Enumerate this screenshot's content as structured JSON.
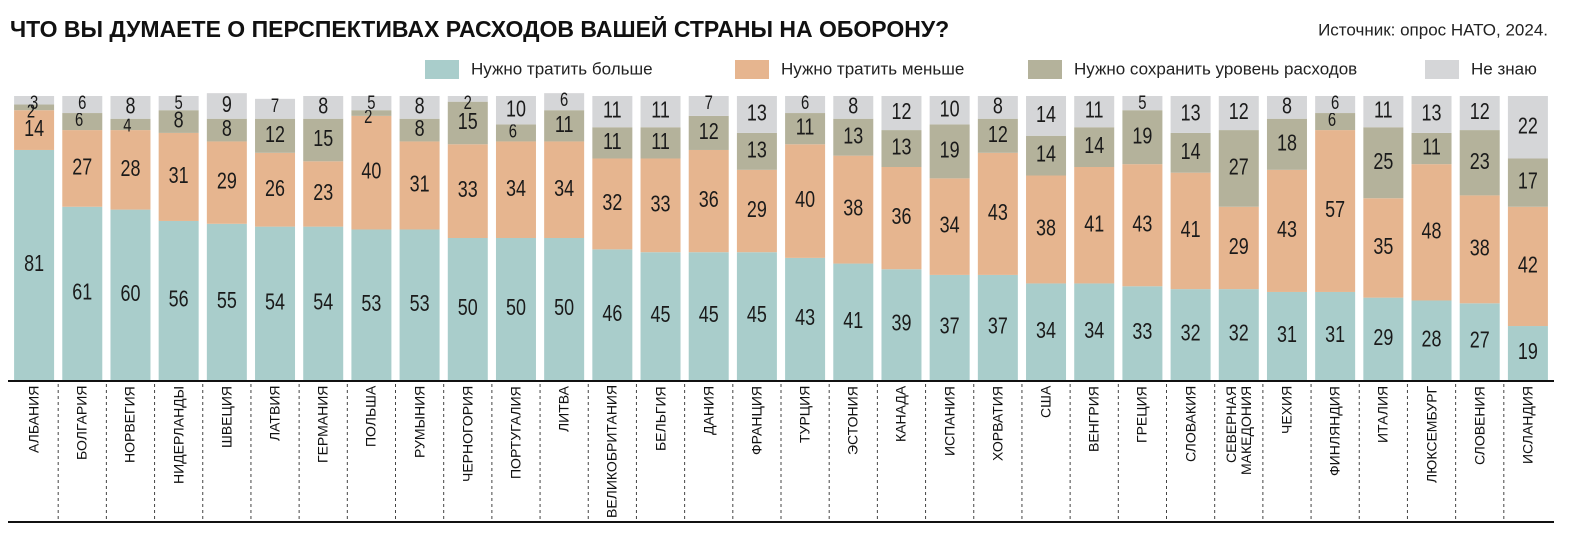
{
  "chart_data": {
    "type": "stacked_bar",
    "title": "ЧТО ВЫ ДУМАЕТЕ О ПЕРСПЕКТИВАХ РАСХОДОВ ВАШЕЙ СТРАНЫ НА ОБОРОНУ?",
    "source": "Источник: опрос НАТО, 2024.",
    "categories": [
      "АЛБАНИЯ",
      "БОЛГАРИЯ",
      "НОРВЕГИЯ",
      "НИДЕРЛАНДЫ",
      "ШВЕЦИЯ",
      "ЛАТВИЯ",
      "ГЕРМАНИЯ",
      "ПОЛЬША",
      "РУМЫНИЯ",
      "ЧЕРНОГОРИЯ",
      "ПОРТУГАЛИЯ",
      "ЛИТВА",
      "ВЕЛИКОБРИТАНИЯ",
      "БЕЛЬГИЯ",
      "ДАНИЯ",
      "ФРАНЦИЯ",
      "ТУРЦИЯ",
      "ЭСТОНИЯ",
      "КАНАДА",
      "ИСПАНИЯ",
      "ХОРВАТИЯ",
      "США",
      "ВЕНГРИЯ",
      "ГРЕЦИЯ",
      "СЛОВАКИЯ",
      "СЕВЕРНАЯ МАКЕДОНИЯ",
      "ЧЕХИЯ",
      "ФИНЛЯНДИЯ",
      "ИТАЛИЯ",
      "ЛЮКСЕМБУРГ",
      "СЛОВЕНИЯ",
      "ИСЛАНДИЯ"
    ],
    "series": [
      {
        "name": "Нужно тратить больше",
        "color": "#a9cdcb",
        "values": [
          81,
          61,
          60,
          56,
          55,
          54,
          54,
          53,
          53,
          50,
          50,
          50,
          46,
          45,
          45,
          45,
          43,
          41,
          39,
          37,
          37,
          34,
          34,
          33,
          32,
          32,
          31,
          31,
          29,
          28,
          27,
          19
        ]
      },
      {
        "name": "Нужно тратить меньше",
        "color": "#e6b58f",
        "values": [
          14,
          27,
          28,
          31,
          29,
          26,
          23,
          40,
          31,
          33,
          34,
          34,
          32,
          33,
          36,
          29,
          40,
          38,
          36,
          34,
          43,
          38,
          41,
          43,
          41,
          29,
          43,
          57,
          35,
          48,
          38,
          42
        ]
      },
      {
        "name": "Нужно сохранить уровень расходов",
        "color": "#b4b29b",
        "values": [
          2,
          6,
          4,
          8,
          8,
          12,
          15,
          2,
          8,
          15,
          6,
          11,
          11,
          11,
          12,
          13,
          11,
          13,
          13,
          19,
          12,
          14,
          14,
          19,
          14,
          27,
          18,
          6,
          25,
          11,
          23,
          17
        ]
      },
      {
        "name": "Не знаю",
        "color": "#d5d6d8",
        "values": [
          3,
          6,
          8,
          5,
          9,
          7,
          8,
          5,
          8,
          2,
          10,
          6,
          11,
          11,
          7,
          13,
          6,
          8,
          12,
          10,
          8,
          14,
          11,
          5,
          13,
          12,
          8,
          6,
          11,
          13,
          12,
          22
        ]
      }
    ],
    "ylim": [
      0,
      100
    ]
  }
}
